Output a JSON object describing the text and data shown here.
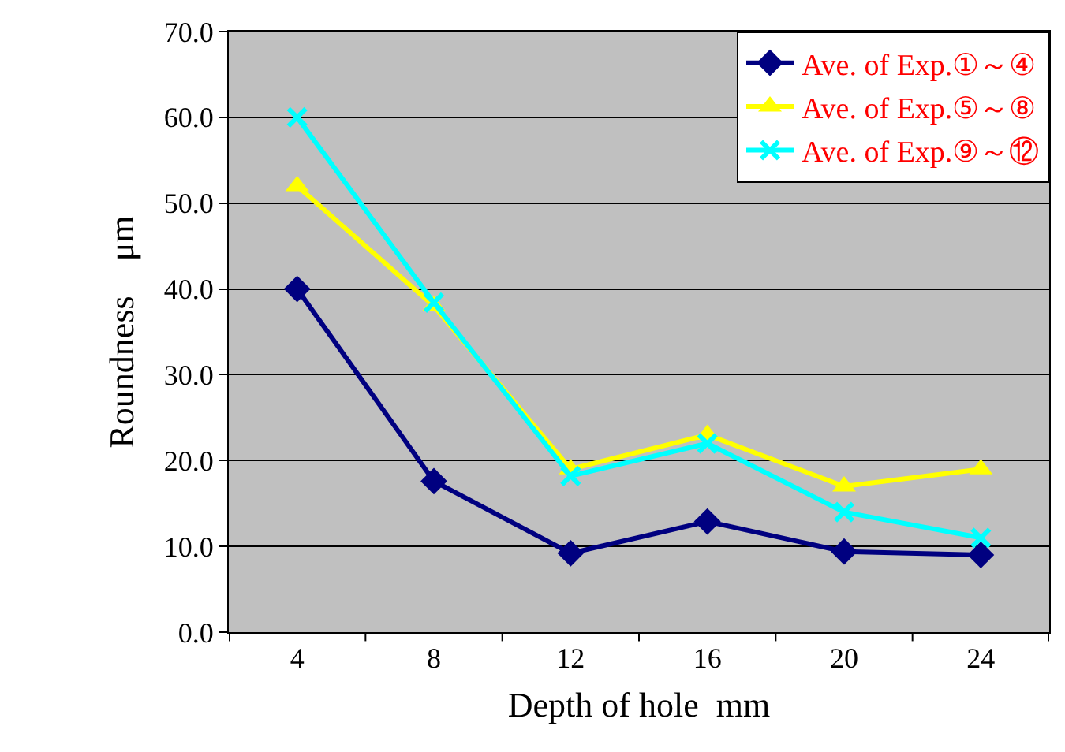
{
  "chart_data": {
    "type": "line",
    "xlabel": "Depth of hole  mm",
    "ylabel": "Roundness　μm",
    "categories": [
      "4",
      "8",
      "12",
      "16",
      "20",
      "24"
    ],
    "series": [
      {
        "name": "Ave. of Exp.①～④",
        "color": "#000080",
        "marker": "diamond",
        "values": [
          40.0,
          17.6,
          9.2,
          12.9,
          9.4,
          9.0
        ]
      },
      {
        "name": "Ave. of Exp.⑤～⑧",
        "color": "#ffff00",
        "marker": "triangle",
        "values": [
          52.0,
          38.0,
          19.0,
          23.0,
          17.0,
          19.0
        ]
      },
      {
        "name": "Ave. of Exp.⑨～⑫",
        "color": "#00ffff",
        "marker": "cross",
        "values": [
          60.0,
          38.4,
          18.2,
          22.0,
          14.0,
          11.0
        ]
      }
    ],
    "ylim": [
      0,
      70
    ],
    "yticks": [
      {
        "value": 0,
        "label": "0.0"
      },
      {
        "value": 10,
        "label": "10.0"
      },
      {
        "value": 20,
        "label": "20.0"
      },
      {
        "value": 30,
        "label": "30.0"
      },
      {
        "value": 40,
        "label": "40.0"
      },
      {
        "value": 50,
        "label": "50.0"
      },
      {
        "value": 60,
        "label": "60.0"
      },
      {
        "value": 70,
        "label": "70.0"
      }
    ],
    "grid": "y",
    "legend": "top right",
    "line_style": "solid"
  }
}
